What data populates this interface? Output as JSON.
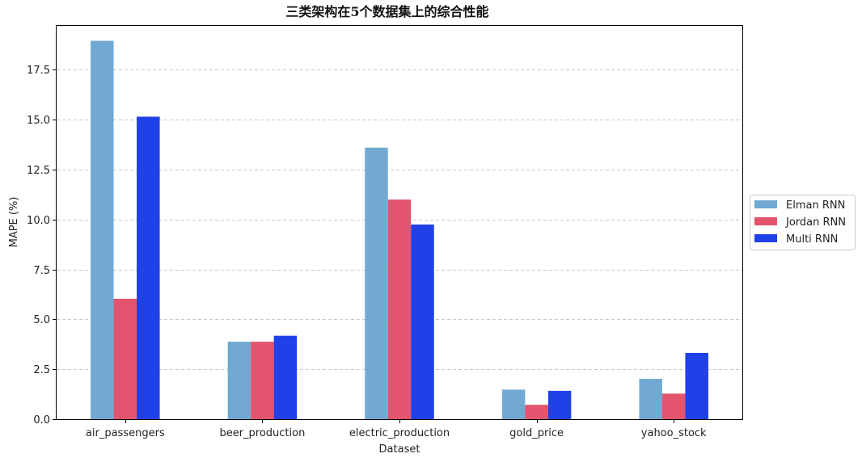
{
  "chart_data": {
    "type": "bar",
    "title": "三类架构在5个数据集上的综合性能",
    "xlabel": "Dataset",
    "ylabel": "MAPE (%)",
    "categories": [
      "air_passengers",
      "beer_production",
      "electric_production",
      "gold_price",
      "yahoo_stock"
    ],
    "series": [
      {
        "name": "Elman RNN",
        "color": "#71a9d2",
        "values": [
          18.95,
          3.88,
          13.6,
          1.48,
          2.02
        ]
      },
      {
        "name": "Jordan RNN",
        "color": "#e3546e",
        "values": [
          6.03,
          3.88,
          11.0,
          0.72,
          1.28
        ]
      },
      {
        "name": "Multi RNN",
        "color": "#2040e8",
        "values": [
          15.15,
          4.18,
          9.75,
          1.42,
          3.32
        ]
      }
    ],
    "ylim": [
      0,
      19.7
    ],
    "yticks": [
      "0.0",
      "2.5",
      "5.0",
      "7.5",
      "10.0",
      "12.5",
      "15.0",
      "17.5"
    ],
    "grid": "y-dashed",
    "legend_position": "center-right"
  }
}
